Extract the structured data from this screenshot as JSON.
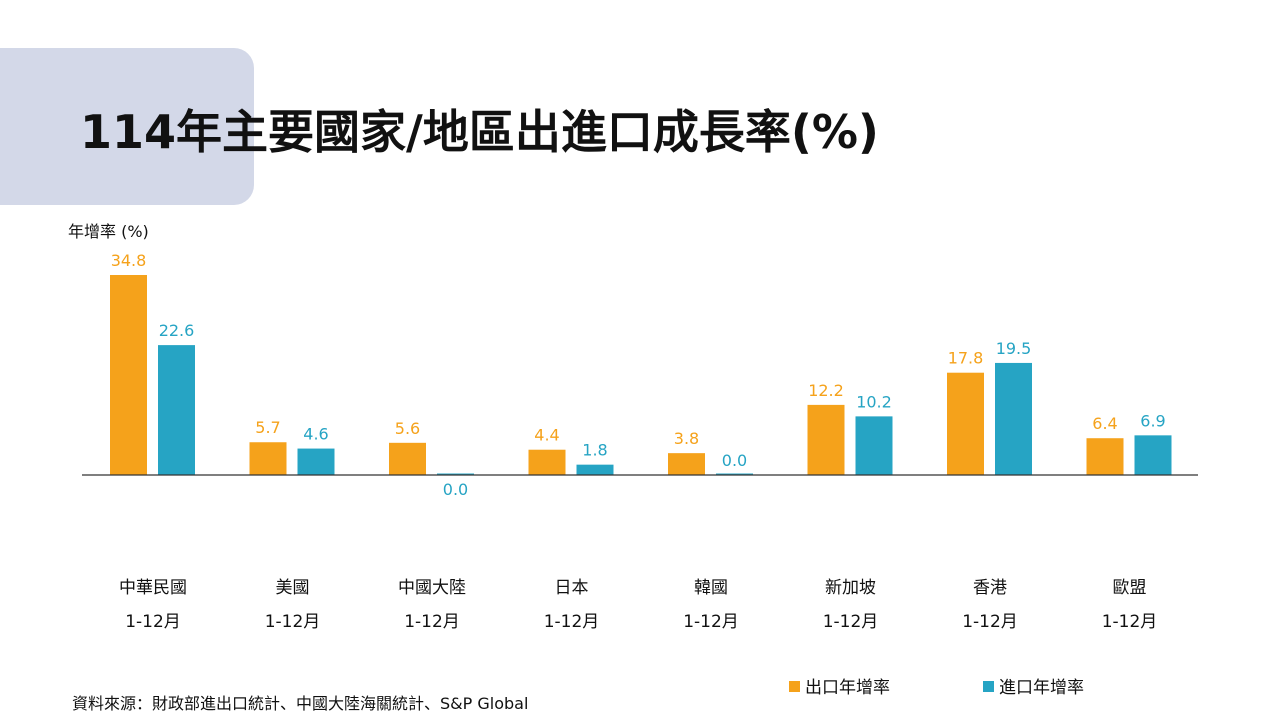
{
  "title": "114年主要國家/地區出進口成長率(%)",
  "source": "資料來源：財政部進出口統計、中國大陸海關統計、S&P Global",
  "chart_data": {
    "type": "bar",
    "ylabel": "年增率 (%)",
    "period_label": "1-12月",
    "categories": [
      "中華民國",
      "美國",
      "中國大陸",
      "日本",
      "韓國",
      "新加坡",
      "香港",
      "歐盟"
    ],
    "series": [
      {
        "name": "出口年增率",
        "color": "#f5a21b",
        "values": [
          34.8,
          5.7,
          5.6,
          4.4,
          3.8,
          12.2,
          17.8,
          6.4
        ]
      },
      {
        "name": "進口年增率",
        "color": "#26a4c4",
        "values": [
          22.6,
          4.6,
          0.0,
          1.8,
          0.0,
          10.2,
          19.5,
          6.9
        ]
      }
    ],
    "value_labels": [
      [
        "34.8",
        "5.7",
        "5.6",
        "4.4",
        "3.8",
        "12.2",
        "17.8",
        "6.4"
      ],
      [
        "22.6",
        "4.6",
        "0.0",
        "1.8",
        "0.0",
        "10.2",
        "19.5",
        "6.9"
      ]
    ],
    "ylim": [
      0,
      36
    ],
    "legend_position": "bottom-right",
    "grid": false
  }
}
